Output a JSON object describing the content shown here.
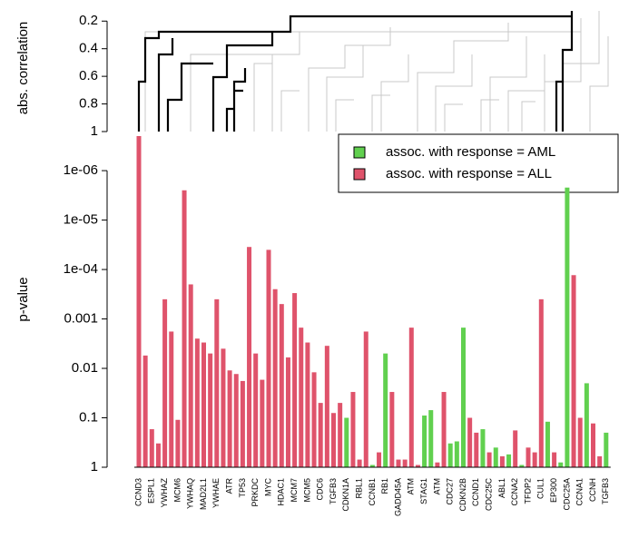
{
  "chart_data": [
    {
      "type": "dendrogram",
      "ylabel": "abs. correlation",
      "ylim": [
        1,
        0.08
      ],
      "yticks": [
        0.2,
        0.4,
        0.6,
        0.8,
        1
      ]
    },
    {
      "type": "bar",
      "ylabel": "p-value",
      "log": true,
      "legend": "topright",
      "ylim": [
        1,
        2e-07
      ],
      "yticks": [
        1,
        0.1,
        0.01,
        0.001,
        {
          "value": 0.0001,
          "label": "1e-04"
        },
        {
          "value": 1e-05,
          "label": "1e-05"
        },
        {
          "value": 1e-06,
          "label": "1e-06"
        }
      ],
      "categories": [
        "CCND3",
        null,
        "ESPL1",
        null,
        "YWHAZ",
        null,
        "MCM6",
        null,
        "YWHAQ",
        null,
        "MAD2L1",
        null,
        "YWHAE",
        null,
        "ATR",
        null,
        "TP53",
        null,
        "PRKDC",
        null,
        "MYC",
        null,
        "HDAC1",
        null,
        "MCM7",
        null,
        "MCM5",
        null,
        "CDC6",
        null,
        "TGFB3",
        null,
        "CDKN1A",
        null,
        "RBL1",
        null,
        "CCNB1",
        null,
        "RB1",
        null,
        "GADD45A",
        null,
        "ATM",
        null,
        "STAG1",
        null,
        "ATM",
        null,
        "CDC27",
        null,
        "CDKN2B",
        null,
        "CCND1",
        null,
        "CDC25C",
        null,
        "ABL1",
        null,
        "CCNA2",
        null,
        "TFDP2",
        null,
        "CUL1",
        null,
        "EP300",
        null,
        "CDC25A",
        null,
        "CCNA1",
        null,
        "CCNH",
        null,
        "TGFB3"
      ],
      "series": [
        {
          "name": "assoc. with response = AML",
          "color": "#61d04f",
          "values": [
            null,
            null,
            null,
            null,
            null,
            null,
            null,
            null,
            null,
            null,
            null,
            null,
            null,
            null,
            null,
            null,
            null,
            null,
            null,
            null,
            null,
            null,
            null,
            null,
            null,
            null,
            null,
            null,
            null,
            null,
            null,
            null,
            0.1,
            null,
            null,
            null,
            0.9,
            null,
            0.005,
            null,
            null,
            null,
            null,
            null,
            0.09,
            0.07,
            null,
            null,
            0.33,
            0.3,
            0.0015,
            null,
            null,
            0.17,
            null,
            0.4,
            null,
            0.55,
            null,
            0.9,
            null,
            null,
            null,
            0.12,
            null,
            0.8,
            2.2e-06,
            null,
            null,
            0.02,
            null,
            null,
            0.2
          ]
        },
        {
          "name": "assoc. with response = ALL",
          "color": "#df536b",
          "values": [
            2e-07,
            0.0055,
            0.17,
            0.33,
            0.0004,
            0.0018,
            0.11,
            2.5e-06,
            0.0002,
            0.0025,
            0.003,
            0.005,
            0.0004,
            0.004,
            0.011,
            0.013,
            0.018,
            3.5e-05,
            0.005,
            0.017,
            4e-05,
            0.00025,
            0.0005,
            0.006,
            0.0003,
            0.0015,
            0.003,
            0.012,
            0.05,
            0.0035,
            0.08,
            0.05,
            null,
            0.03,
            0.7,
            0.0018,
            null,
            0.5,
            null,
            0.03,
            0.7,
            0.7,
            0.0015,
            0.9,
            null,
            null,
            0.8,
            0.03,
            null,
            null,
            null,
            0.1,
            0.2,
            null,
            0.5,
            null,
            0.6,
            null,
            0.18,
            null,
            0.4,
            0.5,
            0.0004,
            null,
            0.5,
            null,
            null,
            0.00013,
            0.1,
            null,
            0.13,
            0.6,
            null
          ]
        }
      ]
    }
  ]
}
